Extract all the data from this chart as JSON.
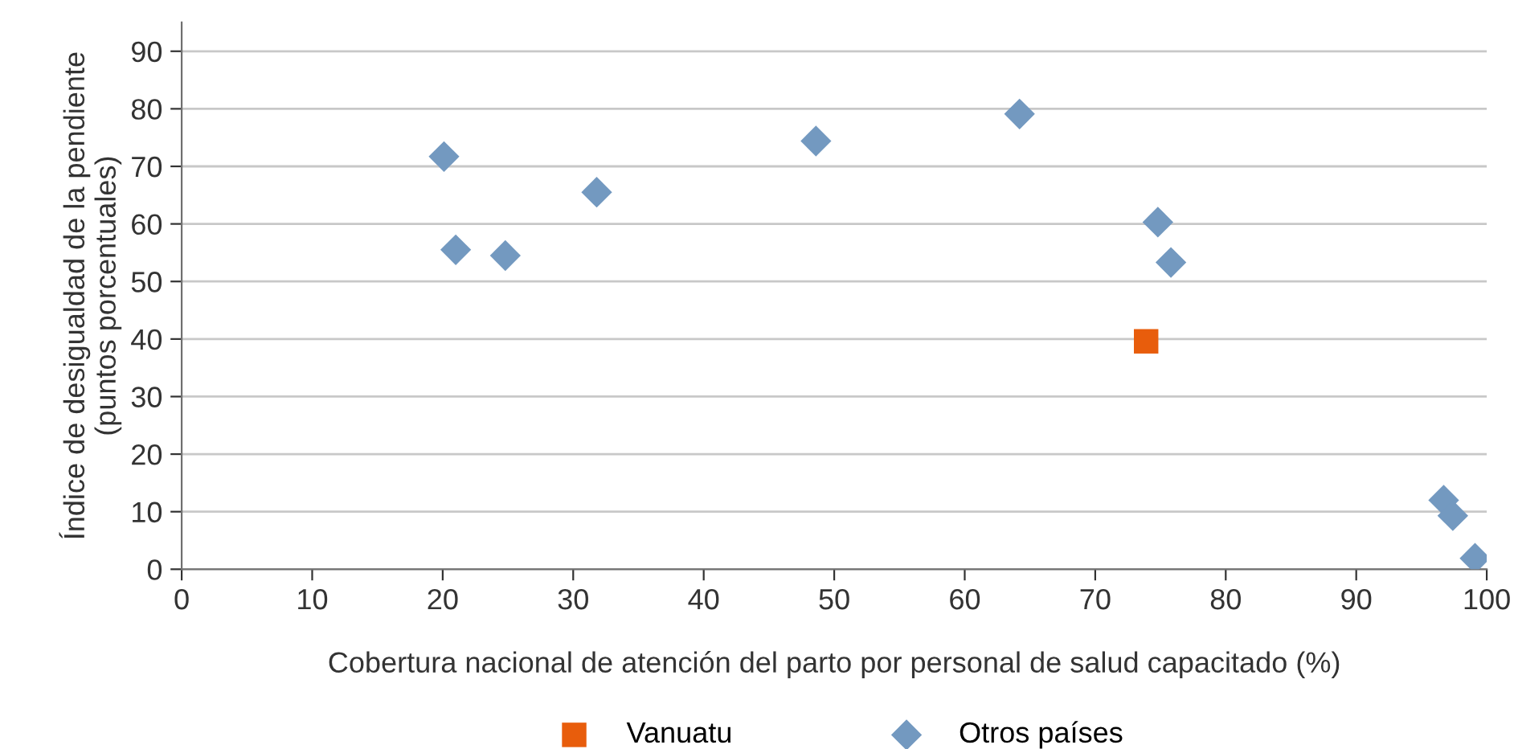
{
  "chart_data": {
    "type": "scatter",
    "xlabel": "Cobertura nacional de atención del parto por personal de salud capacitado (%)",
    "ylabel": "Índice de desigualdad de la pendiente\n(puntos porcentuales)",
    "xlim": [
      0,
      100
    ],
    "xticks": [
      0,
      10,
      20,
      30,
      40,
      50,
      60,
      70,
      80,
      90,
      100
    ],
    "ylim": [
      0,
      95
    ],
    "yticks": [
      0,
      10,
      20,
      30,
      40,
      50,
      60,
      70,
      80,
      90
    ],
    "grid": "y",
    "legend": "bottom",
    "series": [
      {
        "name": "Vanuatu",
        "color": "#e85d0c",
        "marker": "square",
        "x": [
          73.9
        ],
        "values": [
          39.6
        ]
      },
      {
        "name": "Otros países",
        "color": "#7399c0",
        "marker": "diamond",
        "x": [
          20.1,
          21.0,
          24.8,
          31.8,
          48.6,
          64.2,
          74.8,
          75.8,
          96.7,
          97.4,
          99.1
        ],
        "values": [
          71.7,
          55.5,
          54.5,
          65.5,
          74.4,
          79.1,
          60.3,
          53.3,
          12.0,
          9.3,
          1.9
        ]
      }
    ]
  }
}
